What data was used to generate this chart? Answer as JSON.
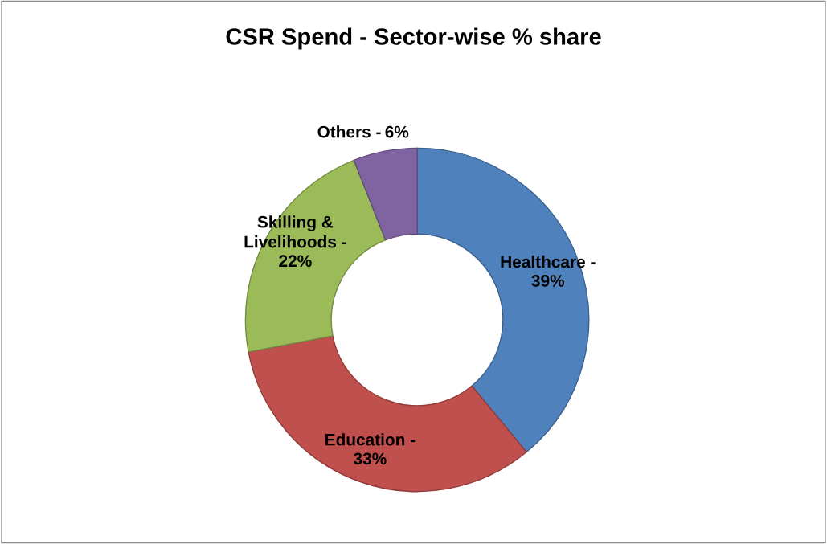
{
  "chart_data": {
    "type": "donut",
    "title": "CSR Spend - Sector-wise % share",
    "categories": [
      "Healthcare -",
      "Education -",
      "Skilling & Livelihoods -",
      "Others -"
    ],
    "values": [
      39,
      33,
      22,
      6
    ],
    "colors": [
      "#4f81bd",
      "#c0504d",
      "#9bbb59",
      "#8064a2"
    ],
    "value_labels": [
      "39%",
      "33%",
      "22%",
      "6%"
    ],
    "legend": false
  }
}
